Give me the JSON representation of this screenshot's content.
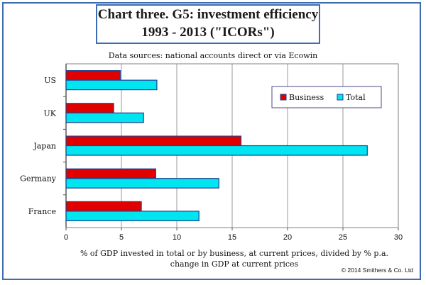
{
  "chart_data": {
    "type": "bar",
    "orientation": "horizontal",
    "title_line1": "Chart three. G5: investment efficiency",
    "title_line2": "1993 - 2013 (\"ICORs\")",
    "subtitle": "Data sources: national accounts direct or via Ecowin",
    "categories": [
      "US",
      "UK",
      "Japan",
      "Germany",
      "France"
    ],
    "series": [
      {
        "name": "Business",
        "color": "#e00000",
        "values": [
          4.9,
          4.3,
          15.8,
          8.1,
          6.8
        ]
      },
      {
        "name": "Total",
        "color": "#00e5ef",
        "values": [
          8.2,
          7.0,
          27.2,
          13.8,
          12.0
        ]
      }
    ],
    "xlim": [
      0,
      30
    ],
    "xticks": [
      0,
      5,
      10,
      15,
      20,
      25,
      30
    ],
    "xlabel_line1": "% of GDP invested in total or by business, at current prices, divided by % p.a.",
    "xlabel_line2": "change in GDP at current prices",
    "legend_position": "top-right",
    "grid": "vertical",
    "copyright": "© 2014 Smithers & Co. Ltd"
  }
}
